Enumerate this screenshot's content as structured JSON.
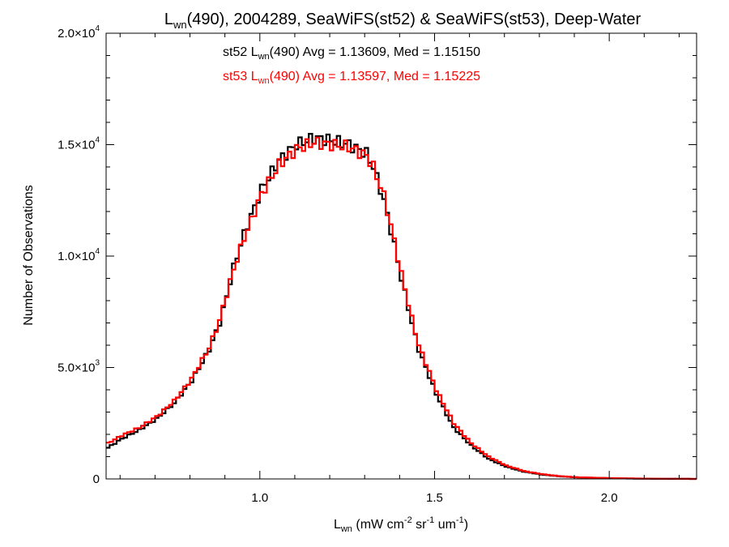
{
  "chart_data": {
    "type": "line",
    "step": true,
    "title": {
      "prefix": "L",
      "prefix_sub": "wn",
      "rest": "(490), 2004289, SeaWiFS(st52) & SeaWiFS(st53), Deep-Water"
    },
    "xlabel": {
      "main": "L",
      "main_sub": "wn",
      "unit_open": " (mW cm",
      "cm_exp": "-2",
      "sr": " sr",
      "sr_exp": "-1",
      "um": " um",
      "um_exp": "-1",
      "unit_close": ")"
    },
    "ylabel": "Number of Observations",
    "xlim": [
      0.56,
      2.25
    ],
    "ylim": [
      0,
      20000
    ],
    "x_ticks": [
      {
        "value": 1.0,
        "label": "1.0"
      },
      {
        "value": 1.5,
        "label": "1.5"
      },
      {
        "value": 2.0,
        "label": "2.0"
      }
    ],
    "y_ticks": [
      {
        "value": 0,
        "mant": "0",
        "exp": ""
      },
      {
        "value": 5000,
        "mant": "5.0×10",
        "exp": "3"
      },
      {
        "value": 10000,
        "mant": "1.0×10",
        "exp": "4"
      },
      {
        "value": 15000,
        "mant": "1.5×10",
        "exp": "4"
      },
      {
        "value": 20000,
        "mant": "2.0×10",
        "exp": "4"
      }
    ],
    "grid": false,
    "series": [
      {
        "name": "st52",
        "color": "#000000",
        "x": [
          0.56,
          0.6,
          0.65,
          0.7,
          0.75,
          0.8,
          0.85,
          0.88,
          0.9,
          0.92,
          0.95,
          1.0,
          1.05,
          1.1,
          1.15,
          1.2,
          1.25,
          1.3,
          1.32,
          1.35,
          1.38,
          1.4,
          1.43,
          1.45,
          1.5,
          1.55,
          1.6,
          1.65,
          1.7,
          1.75,
          1.8,
          1.85,
          1.9,
          2.0,
          2.1,
          2.25
        ],
        "y": [
          1400,
          1800,
          2200,
          2700,
          3400,
          4400,
          5800,
          7000,
          8200,
          9500,
          11000,
          13000,
          14300,
          15000,
          15300,
          15200,
          15000,
          14600,
          14000,
          12500,
          10500,
          9000,
          7000,
          5800,
          3800,
          2300,
          1500,
          900,
          550,
          330,
          200,
          120,
          70,
          30,
          10,
          0
        ]
      },
      {
        "name": "st53",
        "color": "#ff0000",
        "x": [
          0.56,
          0.6,
          0.65,
          0.7,
          0.75,
          0.8,
          0.85,
          0.88,
          0.9,
          0.92,
          0.95,
          1.0,
          1.05,
          1.1,
          1.15,
          1.2,
          1.25,
          1.3,
          1.32,
          1.35,
          1.38,
          1.4,
          1.43,
          1.45,
          1.5,
          1.55,
          1.6,
          1.65,
          1.7,
          1.75,
          1.8,
          1.85,
          1.9,
          2.0,
          2.1,
          2.25
        ],
        "y": [
          1600,
          1950,
          2300,
          2800,
          3500,
          4500,
          5900,
          7100,
          8300,
          9400,
          10800,
          12800,
          14100,
          14800,
          15100,
          15000,
          14900,
          14500,
          14000,
          12700,
          10700,
          9200,
          7200,
          6000,
          4000,
          2500,
          1600,
          1000,
          600,
          360,
          220,
          130,
          75,
          35,
          12,
          0
        ]
      }
    ],
    "annotations": [
      {
        "series": "st52",
        "color": "#000000",
        "name": "st52 L",
        "sub": "wn",
        "rest": "(490) Avg = 1.13609, Med = 1.15150"
      },
      {
        "series": "st53",
        "color": "#ff0000",
        "name": "st53 L",
        "sub": "wn",
        "rest": "(490) Avg = 1.13597, Med = 1.15225"
      }
    ]
  }
}
